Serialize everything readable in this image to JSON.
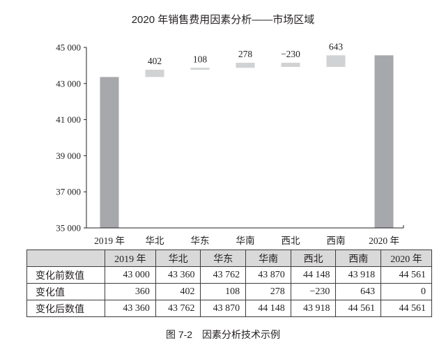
{
  "title": "2020 年销售费用因素分析——市场区域",
  "caption": "图 7-2　因素分析技术示例",
  "colors": {
    "total_bar": "#a7a8ab",
    "delta_bar": "#d1d2d4",
    "axis": "#231f20",
    "table_header_bg": "#d9d9da"
  },
  "chart_data": {
    "type": "bar",
    "subtype": "waterfall",
    "title": "2020 年销售费用因素分析——市场区域",
    "xlabel": "",
    "ylabel": "",
    "ylim": [
      35000,
      45000
    ],
    "yticks": [
      35000,
      37000,
      39000,
      41000,
      43000,
      45000
    ],
    "ytick_labels": [
      "35 000",
      "37 000",
      "39 000",
      "41 000",
      "43 000",
      "45 000"
    ],
    "categories": [
      "2019 年",
      "华北",
      "华东",
      "华南",
      "西北",
      "西南",
      "2020 年"
    ],
    "series": [
      {
        "name": "变化前数值",
        "values": [
          43000,
          43360,
          43762,
          43870,
          44148,
          43918,
          44561
        ]
      },
      {
        "name": "变化值",
        "values": [
          360,
          402,
          108,
          278,
          -230,
          643,
          0
        ]
      },
      {
        "name": "变化后数值",
        "values": [
          43360,
          43762,
          43870,
          44148,
          43918,
          44561,
          44561
        ]
      }
    ],
    "data_labels": [
      "",
      "402",
      "108",
      "278",
      "−230",
      "643",
      ""
    ],
    "bar_kind": [
      "total",
      "delta",
      "delta",
      "delta",
      "delta",
      "delta",
      "total"
    ],
    "grid": false,
    "legend": "none"
  },
  "table": {
    "corner": "",
    "headers": [
      "2019 年",
      "华北",
      "华东",
      "华南",
      "西北",
      "西南",
      "2020 年"
    ],
    "rows": [
      {
        "label": "变化前数值",
        "cells": [
          "43 000",
          "43 360",
          "43 762",
          "43 870",
          "44 148",
          "43 918",
          "44 561"
        ]
      },
      {
        "label": "变化值",
        "cells": [
          "360",
          "402",
          "108",
          "278",
          "−230",
          "643",
          "0"
        ]
      },
      {
        "label": "变化后数值",
        "cells": [
          "43 360",
          "43 762",
          "43 870",
          "44 148",
          "43 918",
          "44 561",
          "44 561"
        ]
      }
    ]
  }
}
